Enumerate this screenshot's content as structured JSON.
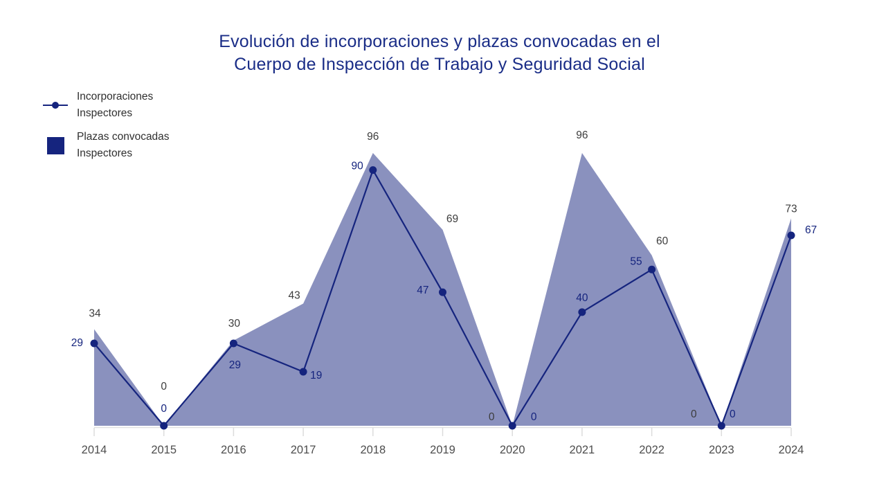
{
  "title": {
    "line1": "Evolución de incorporaciones y plazas convocadas en el",
    "line2": "Cuerpo de Inspección de Trabajo y Seguridad Social",
    "color": "#1a2d87"
  },
  "legend": {
    "items": [
      {
        "marker": "line-dot",
        "label_line1": "Incorporaciones",
        "label_line2": "Inspectores"
      },
      {
        "marker": "square",
        "label_line1": "Plazas convocadas",
        "label_line2": "Inspectores"
      }
    ]
  },
  "chart_data": {
    "type": "line+area",
    "title": "Evolución de incorporaciones y plazas convocadas en el Cuerpo de Inspección de Trabajo y Seguridad Social",
    "categories": [
      "2014",
      "2015",
      "2016",
      "2017",
      "2018",
      "2019",
      "2020",
      "2021",
      "2022",
      "2023",
      "2024"
    ],
    "series": [
      {
        "name": "Plazas convocadas Inspectores",
        "type": "area",
        "values": [
          34,
          0,
          30,
          43,
          96,
          69,
          0,
          96,
          60,
          0,
          73
        ],
        "color": "#15247e",
        "fill_opacity": 0.5,
        "label_color": "#3c3c3c"
      },
      {
        "name": "Incorporaciones Inspectores",
        "type": "line",
        "values": [
          29,
          0,
          29,
          19,
          90,
          47,
          0,
          40,
          55,
          0,
          67
        ],
        "color": "#15247e",
        "marker": "circle",
        "label_color": "#15247e"
      }
    ],
    "ylim": [
      0,
      100
    ],
    "grid": false,
    "data_labels": true,
    "legend_position": "top-left",
    "axis_color": "#e1e1e1",
    "tick_color": "#dcdcdc",
    "x_label_color": "#4d4d4d"
  }
}
